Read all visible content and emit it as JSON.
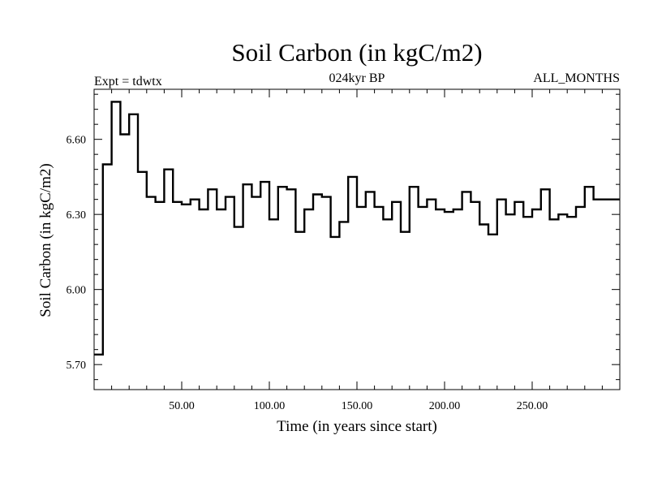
{
  "chart_data": {
    "type": "line",
    "step": true,
    "title": "Soil Carbon (in kgC/m2)",
    "subtitle": "024kyr BP",
    "left_label": "Expt = tdwtx",
    "right_label": "ALL_MONTHS",
    "xlabel": "Time (in years since start)",
    "ylabel": "Soil Carbon (in kgC/m2)",
    "xlim": [
      0,
      300
    ],
    "ylim": [
      5.6,
      6.8
    ],
    "x_ticks": [
      50,
      100,
      150,
      200,
      250
    ],
    "x_tick_labels": [
      "50.00",
      "100.00",
      "150.00",
      "200.00",
      "250.00"
    ],
    "y_ticks": [
      5.7,
      6.0,
      6.3,
      6.6
    ],
    "y_tick_labels": [
      "5.70",
      "6.00",
      "6.30",
      "6.60"
    ],
    "x_step": 5,
    "values": [
      5.74,
      6.5,
      6.75,
      6.62,
      6.7,
      6.47,
      6.37,
      6.35,
      6.48,
      6.35,
      6.34,
      6.36,
      6.32,
      6.4,
      6.32,
      6.37,
      6.25,
      6.42,
      6.37,
      6.43,
      6.28,
      6.41,
      6.4,
      6.23,
      6.32,
      6.38,
      6.37,
      6.21,
      6.27,
      6.45,
      6.33,
      6.39,
      6.33,
      6.28,
      6.35,
      6.23,
      6.41,
      6.33,
      6.36,
      6.32,
      6.31,
      6.32,
      6.39,
      6.35,
      6.26,
      6.22,
      6.36,
      6.3,
      6.35,
      6.29,
      6.32,
      6.4,
      6.28,
      6.3,
      6.29,
      6.33,
      6.41,
      6.36,
      6.36,
      6.36
    ]
  }
}
